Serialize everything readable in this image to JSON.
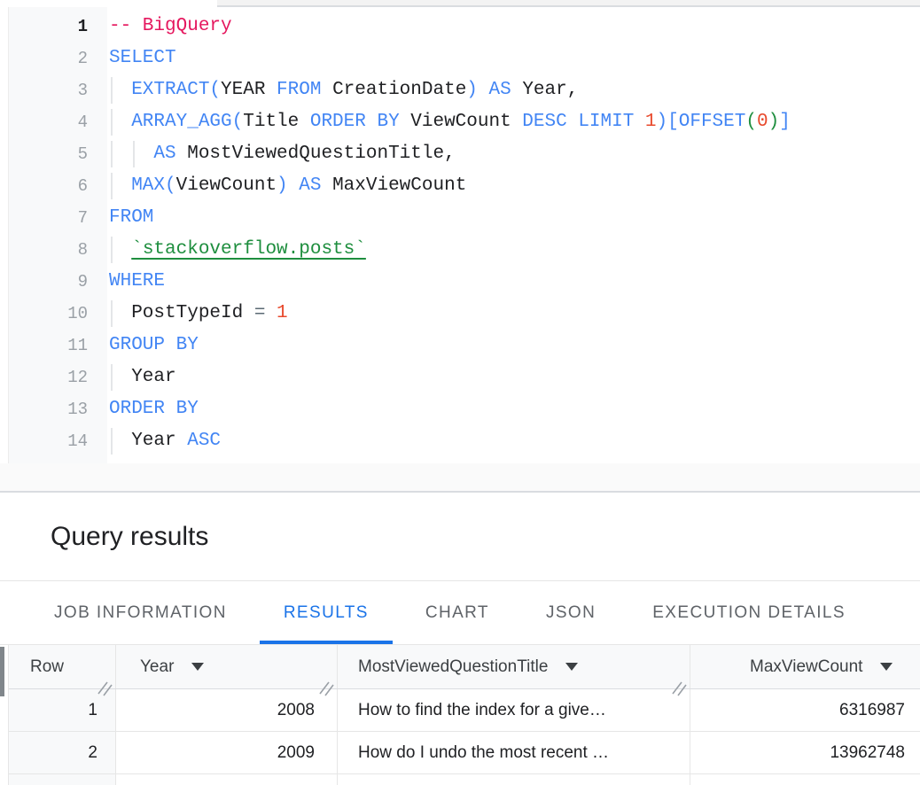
{
  "colors": {
    "accent_blue": "#1a73e8",
    "keyword_blue": "#4285f4",
    "comment_pink": "#e5175e",
    "number_orange": "#e8492c",
    "table_link_green": "#1e8e3e",
    "operator_gray": "#5a6973",
    "table_header_bg": "#f8f9fa"
  },
  "editor": {
    "lines": [
      {
        "n": "1",
        "active": true,
        "guides": [],
        "tokens": [
          [
            "com",
            "-- BigQuery"
          ]
        ]
      },
      {
        "n": "2",
        "guides": [],
        "tokens": [
          [
            "kw",
            "SELECT"
          ]
        ]
      },
      {
        "n": "3",
        "guides": [
          0
        ],
        "tokens": [
          [
            "kw",
            "  EXTRACT("
          ],
          [
            "id",
            "YEAR"
          ],
          [
            "kw",
            " FROM"
          ],
          [
            "id",
            " CreationDate"
          ],
          [
            "kw",
            ") AS"
          ],
          [
            "id",
            " Year,"
          ]
        ]
      },
      {
        "n": "4",
        "guides": [
          0
        ],
        "tokens": [
          [
            "kw",
            "  ARRAY_AGG("
          ],
          [
            "id",
            "Title"
          ],
          [
            "kw",
            " ORDER BY"
          ],
          [
            "id",
            " ViewCount"
          ],
          [
            "kw",
            " DESC LIMIT"
          ],
          [
            "num",
            " 1"
          ],
          [
            "kw",
            ")[OFFSET"
          ],
          [
            "gp",
            "("
          ],
          [
            "num",
            "0"
          ],
          [
            "gp",
            ")"
          ],
          [
            "kw",
            "]"
          ]
        ]
      },
      {
        "n": "5",
        "guides": [
          0,
          2
        ],
        "tokens": [
          [
            "kw",
            "    AS"
          ],
          [
            "id",
            " MostViewedQuestionTitle,"
          ]
        ]
      },
      {
        "n": "6",
        "guides": [
          0
        ],
        "tokens": [
          [
            "kw",
            "  MAX("
          ],
          [
            "id",
            "ViewCount"
          ],
          [
            "kw",
            ") AS"
          ],
          [
            "id",
            " MaxViewCount"
          ]
        ]
      },
      {
        "n": "7",
        "guides": [],
        "tokens": [
          [
            "kw",
            "FROM"
          ]
        ]
      },
      {
        "n": "8",
        "guides": [
          0
        ],
        "tokens": [
          [
            "id",
            "  "
          ],
          [
            "lnk",
            "`stackoverflow.posts`"
          ]
        ]
      },
      {
        "n": "9",
        "guides": [],
        "tokens": [
          [
            "kw",
            "WHERE"
          ]
        ]
      },
      {
        "n": "10",
        "guides": [
          0
        ],
        "tokens": [
          [
            "id",
            "  PostTypeId "
          ],
          [
            "op",
            "="
          ],
          [
            "num",
            " 1"
          ]
        ]
      },
      {
        "n": "11",
        "guides": [],
        "tokens": [
          [
            "kw",
            "GROUP BY"
          ]
        ]
      },
      {
        "n": "12",
        "guides": [
          0
        ],
        "tokens": [
          [
            "id",
            "  Year"
          ]
        ]
      },
      {
        "n": "13",
        "guides": [],
        "tokens": [
          [
            "kw",
            "ORDER BY"
          ]
        ]
      },
      {
        "n": "14",
        "guides": [
          0
        ],
        "tokens": [
          [
            "id",
            "  Year "
          ],
          [
            "kw",
            "ASC"
          ]
        ]
      }
    ]
  },
  "results_panel": {
    "title": "Query results",
    "tabs": [
      {
        "label": "JOB INFORMATION",
        "active": false
      },
      {
        "label": "RESULTS",
        "active": true
      },
      {
        "label": "CHART",
        "active": false
      },
      {
        "label": "JSON",
        "active": false
      },
      {
        "label": "EXECUTION DETAILS",
        "active": false
      }
    ],
    "table": {
      "columns": [
        {
          "label": "Row",
          "sort_arrow": false
        },
        {
          "label": "Year",
          "sort_arrow": true
        },
        {
          "label": "MostViewedQuestionTitle",
          "sort_arrow": true
        },
        {
          "label": "MaxViewCount",
          "sort_arrow": true
        }
      ],
      "rows": [
        [
          "1",
          "2008",
          "How to find the index for a give…",
          "6316987"
        ],
        [
          "2",
          "2009",
          "How do I undo the most recent …",
          "13962748"
        ]
      ]
    }
  }
}
